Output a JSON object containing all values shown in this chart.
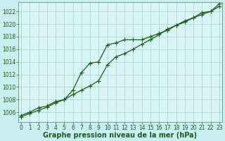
{
  "xlabel": "Graphe pression niveau de la mer (hPa)",
  "ylabel": "",
  "background_color": "#c8eef0",
  "plot_bg_color": "#d8f4f4",
  "grid_color": "#a8cece",
  "line_color": "#1a5c1a",
  "marker_color": "#1a5c1a",
  "x_ticks": [
    0,
    1,
    2,
    3,
    4,
    5,
    6,
    7,
    8,
    9,
    10,
    11,
    12,
    13,
    14,
    15,
    16,
    17,
    18,
    19,
    20,
    21,
    22,
    23
  ],
  "y_ticks": [
    1006,
    1008,
    1010,
    1012,
    1014,
    1016,
    1018,
    1020,
    1022
  ],
  "ylim": [
    1004.5,
    1023.5
  ],
  "xlim": [
    -0.3,
    23.3
  ],
  "line1_x": [
    0,
    1,
    2,
    3,
    4,
    5,
    6,
    7,
    8,
    9,
    10,
    11,
    12,
    13,
    14,
    15,
    16,
    17,
    18,
    19,
    20,
    21,
    22,
    23
  ],
  "line1_y": [
    1005.5,
    1006.0,
    1006.7,
    1007.0,
    1007.7,
    1008.0,
    1009.5,
    1012.3,
    1013.8,
    1014.0,
    1016.7,
    1017.0,
    1017.5,
    1017.5,
    1017.5,
    1018.0,
    1018.5,
    1019.0,
    1019.8,
    1020.5,
    1021.0,
    1021.8,
    1022.0,
    1023.2
  ],
  "line2_x": [
    0,
    1,
    2,
    3,
    4,
    5,
    6,
    7,
    8,
    9,
    10,
    11,
    12,
    13,
    14,
    15,
    16,
    17,
    18,
    19,
    20,
    21,
    22,
    23
  ],
  "line2_y": [
    1005.3,
    1005.8,
    1006.3,
    1006.8,
    1007.5,
    1008.0,
    1008.8,
    1009.5,
    1010.2,
    1011.0,
    1013.5,
    1014.8,
    1015.3,
    1016.0,
    1016.8,
    1017.5,
    1018.3,
    1019.2,
    1019.8,
    1020.3,
    1021.0,
    1021.5,
    1022.0,
    1022.8
  ],
  "marker": "+",
  "markersize": 4,
  "linewidth": 0.9,
  "xlabel_fontsize": 7,
  "tick_fontsize": 5.5,
  "xlabel_color": "#1a5c1a",
  "tick_color": "#1a5c1a",
  "border_color": "#6a9a7a",
  "ylabel_left": true
}
